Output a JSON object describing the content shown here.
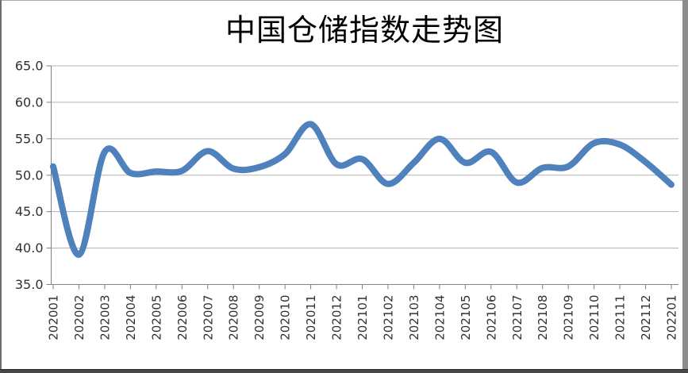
{
  "chart_data": {
    "type": "line",
    "title": "中国仓储指数走势图",
    "categories": [
      "202001",
      "202002",
      "202003",
      "202004",
      "202005",
      "202006",
      "202007",
      "202008",
      "202009",
      "202010",
      "202011",
      "202012",
      "202101",
      "202102",
      "202103",
      "202104",
      "202105",
      "202106",
      "202107",
      "202108",
      "202109",
      "202110",
      "202111",
      "202112",
      "202201"
    ],
    "series": [
      {
        "name": "仓储指数",
        "values": [
          51.2,
          39.1,
          53.2,
          50.3,
          50.5,
          50.6,
          53.3,
          50.9,
          51.1,
          52.9,
          57.0,
          51.5,
          52.2,
          48.8,
          51.7,
          55.0,
          51.7,
          53.2,
          49.0,
          51.0,
          51.2,
          54.4,
          54.2,
          51.8,
          48.7
        ]
      }
    ],
    "yticks": [
      "65.0",
      "60.0",
      "55.0",
      "50.0",
      "45.0",
      "40.0",
      "35.0"
    ],
    "ylim": [
      35.0,
      65.0
    ],
    "ytick_step": 5.0,
    "xlabel": "",
    "ylabel": "",
    "grid": true,
    "legend_position": "none",
    "smooth": true,
    "line_color": "#4F81BD"
  }
}
